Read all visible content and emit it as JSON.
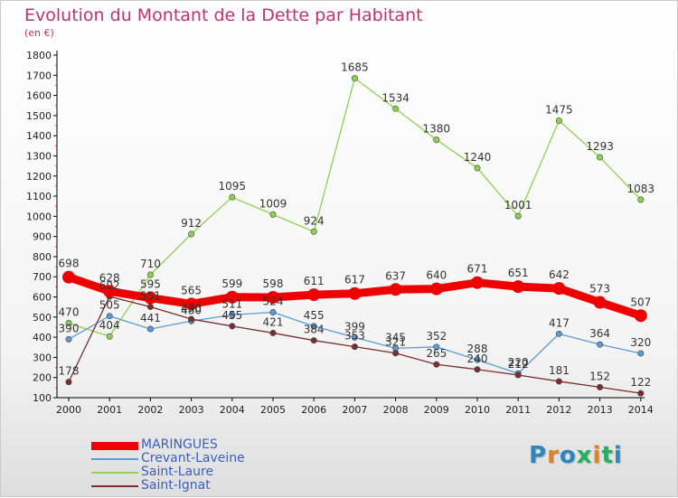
{
  "title": "Evolution du Montant de la Dette par Habitant",
  "subtitle": "(en €)",
  "logo": {
    "letters": [
      "P",
      "r",
      "o",
      "x",
      "i",
      "t",
      "i"
    ],
    "colors": [
      "#2e86c1",
      "#e67e22",
      "#2e86c1",
      "#27ae60",
      "#e67e22",
      "#27ae60",
      "#2e86c1"
    ]
  },
  "chart_data": {
    "type": "line",
    "title": "Evolution du Montant de la Dette par Habitant",
    "subtitle": "(en €)",
    "xlabel": "",
    "ylabel": "",
    "x": [
      "2000",
      "2001",
      "2002",
      "2003",
      "2004",
      "2005",
      "2006",
      "2007",
      "2008",
      "2009",
      "2010",
      "2011",
      "2012",
      "2013",
      "2014"
    ],
    "ylim": [
      100,
      1800
    ],
    "yticks": [
      "100",
      "200",
      "300",
      "400",
      "500",
      "600",
      "700",
      "800",
      "900",
      "1000",
      "1100",
      "1200",
      "1300",
      "1400",
      "1500",
      "1600",
      "1700",
      "1800"
    ],
    "grid": false,
    "legend": "bottom-left",
    "series": [
      {
        "name": "MARINGUES",
        "color": "#ee0000",
        "values": [
          698,
          628,
          595,
          565,
          599,
          598,
          611,
          617,
          637,
          640,
          671,
          651,
          642,
          573,
          507
        ]
      },
      {
        "name": "Crevant-Laveine",
        "color": "#5b9bd5",
        "values": [
          390,
          505,
          441,
          480,
          511,
          524,
          455,
          399,
          345,
          352,
          288,
          220,
          417,
          364,
          320
        ]
      },
      {
        "name": "Saint-Laure",
        "color": "#8fd14f",
        "values": [
          470,
          404,
          710,
          912,
          1095,
          1009,
          924,
          1685,
          1534,
          1380,
          1240,
          1001,
          1475,
          1293,
          1083
        ]
      },
      {
        "name": "Saint-Ignat",
        "color": "#7a2e2e",
        "values": [
          178,
          602,
          551,
          490,
          455,
          421,
          384,
          353,
          321,
          265,
          240,
          212,
          181,
          152,
          122
        ]
      }
    ]
  }
}
